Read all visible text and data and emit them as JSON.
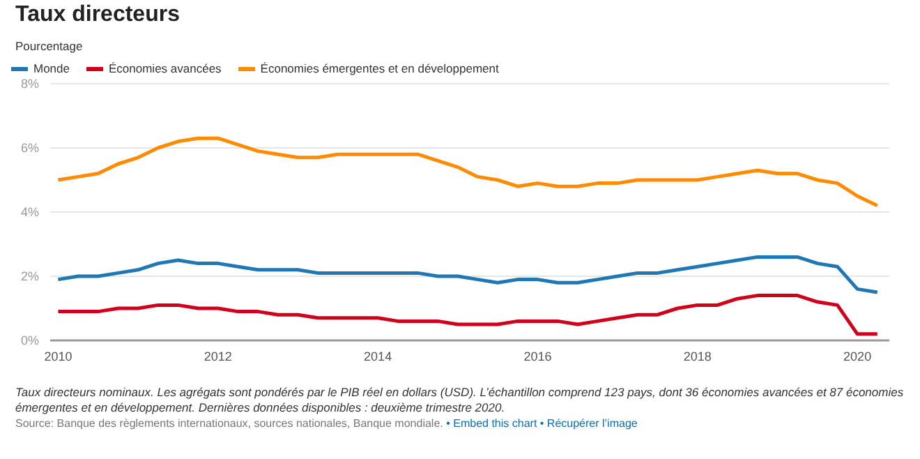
{
  "chart_data": {
    "type": "line",
    "title": "Taux directeurs",
    "ylabel": "Pourcentage",
    "x": [
      2010,
      2010.25,
      2010.5,
      2010.75,
      2011,
      2011.25,
      2011.5,
      2011.75,
      2012,
      2012.25,
      2012.5,
      2012.75,
      2013,
      2013.25,
      2013.5,
      2013.75,
      2014,
      2014.25,
      2014.5,
      2014.75,
      2015,
      2015.25,
      2015.5,
      2015.75,
      2016,
      2016.25,
      2016.5,
      2016.75,
      2017,
      2017.25,
      2017.5,
      2017.75,
      2018,
      2018.25,
      2018.5,
      2018.75,
      2019,
      2019.25,
      2019.5,
      2019.75,
      2020,
      2020.25
    ],
    "series": [
      {
        "name": "Monde",
        "color": "#1f77b4",
        "values": [
          1.9,
          2.0,
          2.0,
          2.1,
          2.2,
          2.4,
          2.5,
          2.4,
          2.4,
          2.3,
          2.2,
          2.2,
          2.2,
          2.1,
          2.1,
          2.1,
          2.1,
          2.1,
          2.1,
          2.0,
          2.0,
          1.9,
          1.8,
          1.9,
          1.9,
          1.8,
          1.8,
          1.9,
          2.0,
          2.1,
          2.1,
          2.2,
          2.3,
          2.4,
          2.5,
          2.6,
          2.6,
          2.6,
          2.4,
          2.3,
          1.6,
          1.5
        ]
      },
      {
        "name": "Économies avancées",
        "color": "#d0021b",
        "values": [
          0.9,
          0.9,
          0.9,
          1.0,
          1.0,
          1.1,
          1.1,
          1.0,
          1.0,
          0.9,
          0.9,
          0.8,
          0.8,
          0.7,
          0.7,
          0.7,
          0.7,
          0.6,
          0.6,
          0.6,
          0.5,
          0.5,
          0.5,
          0.6,
          0.6,
          0.6,
          0.5,
          0.6,
          0.7,
          0.8,
          0.8,
          1.0,
          1.1,
          1.1,
          1.3,
          1.4,
          1.4,
          1.4,
          1.2,
          1.1,
          0.2,
          0.2
        ]
      },
      {
        "name": "Économies émergentes et en développement",
        "color": "#ff8c00",
        "values": [
          5.0,
          5.1,
          5.2,
          5.5,
          5.7,
          6.0,
          6.2,
          6.3,
          6.3,
          6.1,
          5.9,
          5.8,
          5.7,
          5.7,
          5.8,
          5.8,
          5.8,
          5.8,
          5.8,
          5.6,
          5.4,
          5.1,
          5.0,
          4.8,
          4.9,
          4.8,
          4.8,
          4.9,
          4.9,
          5.0,
          5.0,
          5.0,
          5.0,
          5.1,
          5.2,
          5.3,
          5.2,
          5.2,
          5.0,
          4.9,
          4.5,
          4.2
        ]
      }
    ],
    "xlim": [
      2009.9,
      2020.4
    ],
    "xticks": [
      2010,
      2012,
      2014,
      2016,
      2018,
      2020
    ],
    "ylim": [
      0,
      8
    ],
    "yticks": [
      {
        "value": 0,
        "label": "0%"
      },
      {
        "value": 2,
        "label": "2%"
      },
      {
        "value": 4,
        "label": "4%"
      },
      {
        "value": 6,
        "label": "6%"
      },
      {
        "value": 8,
        "label": "8%"
      }
    ],
    "grid": "y",
    "legend": "top left",
    "marker": "none",
    "line_style": "solid",
    "annotations": [
      "Taux directeurs nominaux. Les agrégats sont pondérés par le PIB réel en dollars (USD). L’échantillon comprend 123 pays, dont 36 économies avancées et 87 économies émergentes et en développement. Dernières données disponibles : deuxième trimestre 2020.",
      "Source: Banque des règlements internationaux, sources nationales, Banque mondiale.",
      "• Embed this chart",
      "• Récupérer l’image"
    ]
  }
}
